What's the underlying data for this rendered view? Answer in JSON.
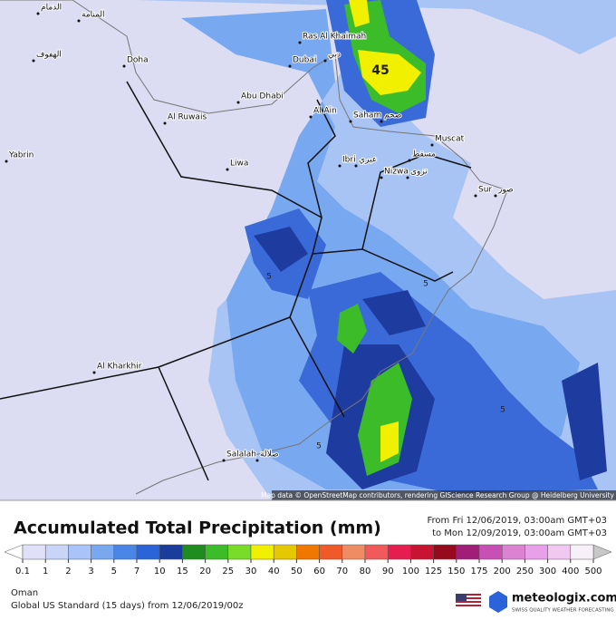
{
  "map": {
    "cities": [
      "Ras Al Khaimah",
      "Dubai",
      "Doha",
      "Abu Dhabi",
      "Al Ain",
      "Al Ruwais",
      "Saham",
      "صحم",
      "Muscat",
      "مسقط",
      "Liwa",
      "Ibri",
      "عبري",
      "Nizwa",
      "نزوى",
      "Sur",
      "صور",
      "Yabrin",
      "Al Kharkhir",
      "Salalah",
      "صلالة",
      "الدمام",
      "المنامة",
      "الهفوف",
      "دبي"
    ],
    "contour_labels": [
      "45",
      "5",
      "5",
      "5",
      "5"
    ],
    "attribution": "Map data © OpenStreetMap contributors, rendering GIScience Research Group @ Heidelberg University"
  },
  "legend": {
    "title": "Accumulated Total Precipitation (mm)",
    "period_from": "From Fri 12/06/2019, 03:00am GMT+03",
    "period_to": "to Mon 12/09/2019, 03:00am GMT+03",
    "ticks": [
      0.1,
      1,
      2,
      3,
      5,
      7,
      10,
      15,
      20,
      25,
      30,
      40,
      50,
      60,
      70,
      80,
      90,
      100,
      125,
      150,
      175,
      200,
      250,
      300,
      400,
      500
    ],
    "colors": [
      "#e0e0f8",
      "#c8d4f8",
      "#a8c4f8",
      "#78a8f0",
      "#4a86e8",
      "#2a64d8",
      "#1a3c9c",
      "#1e8c1e",
      "#3cbc28",
      "#78dc28",
      "#f0f000",
      "#e6c800",
      "#f07800",
      "#f05a28",
      "#f08c64",
      "#f05a5a",
      "#e61e50",
      "#c81432",
      "#960a1e",
      "#a01e78",
      "#c850b4",
      "#dc82d2",
      "#e8a0e8",
      "#f0c8f0",
      "#f8f0f8"
    ],
    "under_color": "#ffffff",
    "over_color": "#c8c8c8"
  },
  "footer": {
    "region": "Oman",
    "model": "Global US Standard (15 days) from 12/06/2019/00z",
    "brand": "meteologix.com",
    "tagline": "SWISS QUALITY WEATHER FORECASTING"
  }
}
